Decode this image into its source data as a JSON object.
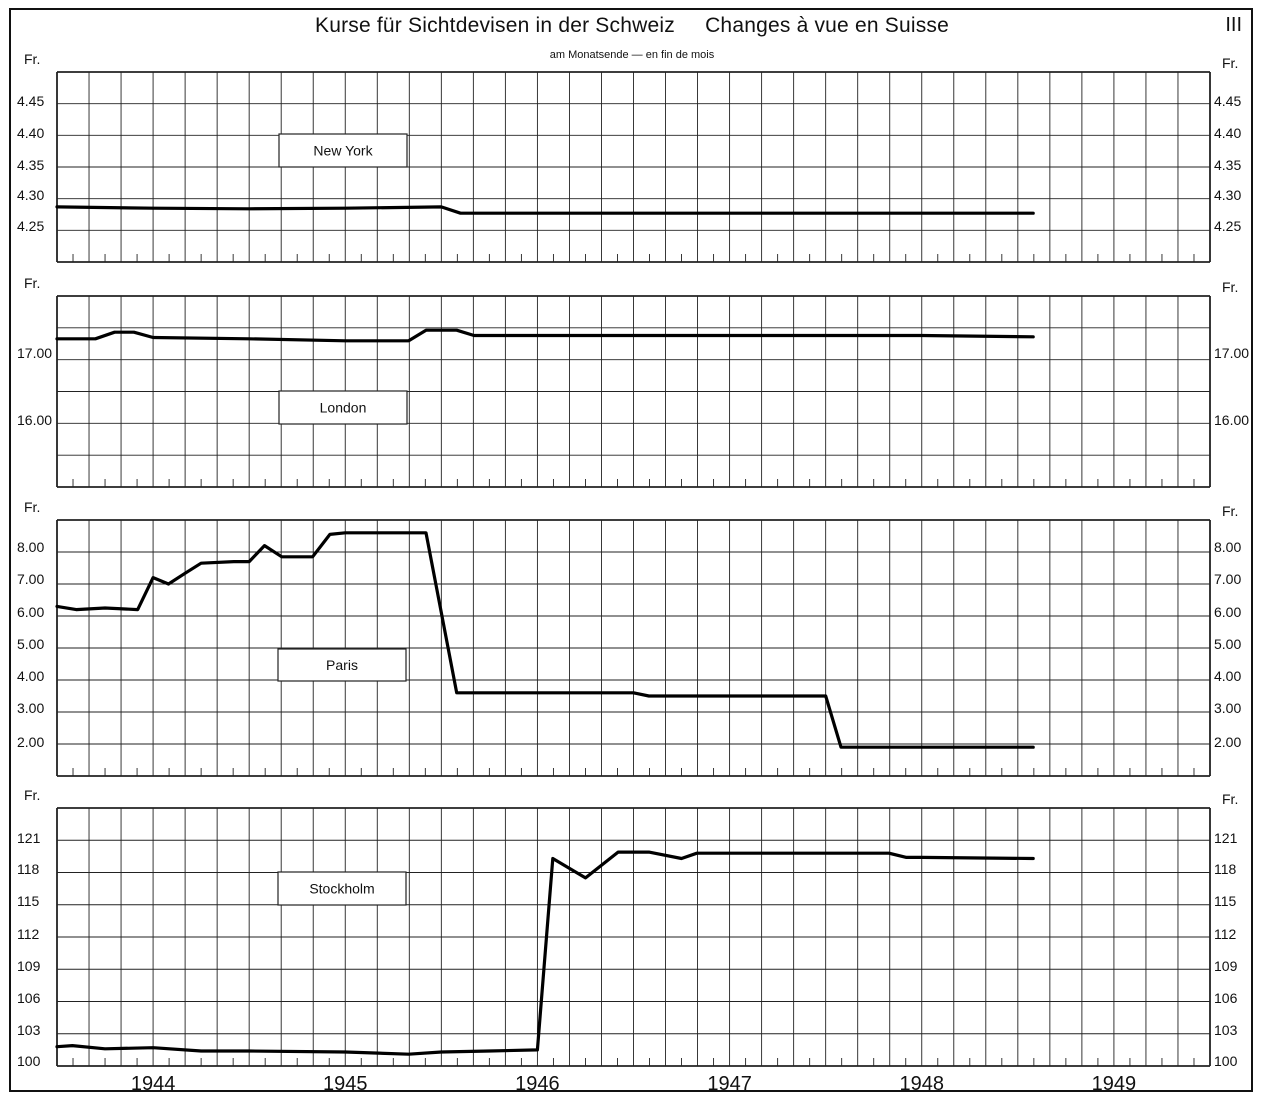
{
  "header": {
    "title": "Kurse für Sichtdevisen in der Schweiz     Changes à vue en Suisse",
    "subtitle": "am Monatsende — en fin de mois",
    "page_number": "III"
  },
  "chart_data": [
    {
      "type": "line",
      "label": "New York",
      "unit": "Fr.",
      "yticks": [
        "4.45",
        "4.40",
        "4.35",
        "4.30",
        "4.25"
      ],
      "ylim": [
        4.2,
        4.5
      ],
      "x_years": [
        "1944",
        "1945",
        "1946",
        "1947",
        "1948",
        "1949"
      ],
      "x": [
        1943.5,
        1944.0,
        1944.5,
        1945.0,
        1945.5,
        1945.6,
        1946.0,
        1946.5,
        1947.0,
        1947.5,
        1948.0,
        1948.5,
        1948.58
      ],
      "y": [
        4.287,
        4.285,
        4.284,
        4.285,
        4.287,
        4.277,
        4.277,
        4.277,
        4.277,
        4.277,
        4.277,
        4.277,
        4.277
      ]
    },
    {
      "type": "line",
      "label": "London",
      "unit": "Fr.",
      "yticks": [
        "17.00",
        "16.00"
      ],
      "ylim": [
        15.0,
        17.9
      ],
      "x_years": [
        "1944",
        "1945",
        "1946",
        "1947",
        "1948",
        "1949"
      ],
      "x": [
        1943.5,
        1943.7,
        1943.8,
        1943.9,
        1944.0,
        1944.5,
        1945.0,
        1945.33,
        1945.42,
        1945.58,
        1945.67,
        1946.0,
        1946.5,
        1947.0,
        1947.5,
        1948.0,
        1948.58
      ],
      "y": [
        17.25,
        17.25,
        17.35,
        17.35,
        17.27,
        17.25,
        17.22,
        17.22,
        17.38,
        17.38,
        17.3,
        17.3,
        17.3,
        17.3,
        17.3,
        17.3,
        17.28
      ]
    },
    {
      "type": "line",
      "label": "Paris",
      "unit": "Fr.",
      "yticks": [
        "8.00",
        "7.00",
        "6.00",
        "5.00",
        "4.00",
        "3.00",
        "2.00"
      ],
      "ylim": [
        1.0,
        9.0
      ],
      "x_years": [
        "1944",
        "1945",
        "1946",
        "1947",
        "1948",
        "1949"
      ],
      "x": [
        1943.5,
        1943.6,
        1943.75,
        1943.92,
        1944.0,
        1944.08,
        1944.17,
        1944.25,
        1944.42,
        1944.5,
        1944.58,
        1944.67,
        1944.83,
        1944.92,
        1945.0,
        1945.17,
        1945.42,
        1945.58,
        1946.0,
        1946.5,
        1946.58,
        1947.0,
        1947.5,
        1947.58,
        1948.0,
        1948.58
      ],
      "y": [
        6.3,
        6.2,
        6.25,
        6.2,
        7.2,
        7.0,
        7.35,
        7.65,
        7.7,
        7.7,
        8.2,
        7.85,
        7.85,
        8.55,
        8.6,
        8.6,
        8.6,
        3.6,
        3.6,
        3.6,
        3.5,
        3.5,
        3.5,
        1.9,
        1.9,
        1.9
      ]
    },
    {
      "type": "line",
      "label": "Stockholm",
      "unit": "Fr.",
      "yticks": [
        "121",
        "118",
        "115",
        "112",
        "109",
        "106",
        "103",
        "100"
      ],
      "ylim": [
        100,
        124
      ],
      "x_years": [
        "1944",
        "1945",
        "1946",
        "1947",
        "1948",
        "1949"
      ],
      "x": [
        1943.5,
        1943.58,
        1943.75,
        1944.0,
        1944.25,
        1944.5,
        1945.0,
        1945.33,
        1945.5,
        1945.75,
        1946.0,
        1946.08,
        1946.25,
        1946.42,
        1946.58,
        1946.75,
        1946.83,
        1947.0,
        1947.5,
        1947.83,
        1947.92,
        1948.0,
        1948.58
      ],
      "y": [
        101.8,
        101.9,
        101.6,
        101.7,
        101.4,
        101.4,
        101.3,
        101.1,
        101.3,
        101.4,
        101.5,
        119.3,
        117.5,
        119.9,
        119.9,
        119.3,
        119.8,
        119.8,
        119.8,
        119.8,
        119.4,
        119.4,
        119.3
      ]
    }
  ]
}
